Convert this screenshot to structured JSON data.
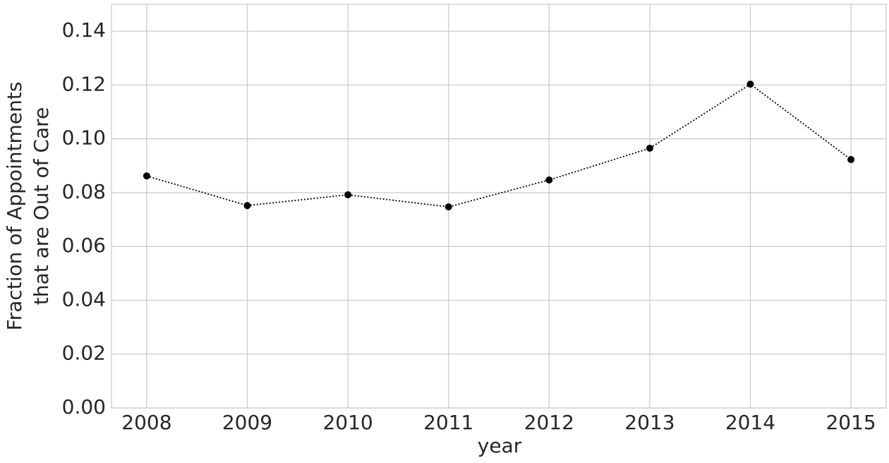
{
  "chart_data": {
    "type": "line",
    "xlabel": "year",
    "ylabel": [
      "Fraction of Appointments",
      "that are Out of Care"
    ],
    "x": [
      2008,
      2009,
      2010,
      2011,
      2012,
      2013,
      2014,
      2015
    ],
    "series": [
      {
        "color": "#000000",
        "values": [
          0.0862,
          0.0752,
          0.0792,
          0.0747,
          0.0847,
          0.0965,
          0.1203,
          0.0923
        ]
      }
    ],
    "xlim": [
      2007.65,
      2015.35
    ],
    "xticks": [
      2008,
      2009,
      2010,
      2011,
      2012,
      2013,
      2014,
      2015
    ],
    "ylim": [
      0,
      0.15
    ],
    "yticks": [
      {
        "value": 0,
        "label": "0.00"
      },
      {
        "value": 0.02,
        "label": "0.02"
      },
      {
        "value": 0.04,
        "label": "0.04"
      },
      {
        "value": 0.06,
        "label": "0.06"
      },
      {
        "value": 0.08,
        "label": "0.08"
      },
      {
        "value": 0.1,
        "label": "0.10"
      },
      {
        "value": 0.12,
        "label": "0.12"
      },
      {
        "value": 0.14,
        "label": "0.14"
      }
    ],
    "grid": true
  }
}
